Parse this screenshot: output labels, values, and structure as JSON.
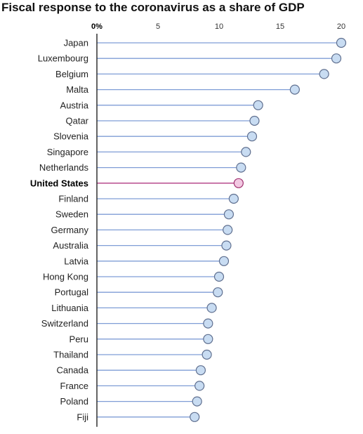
{
  "chart_data": {
    "type": "lollipop",
    "title": "Fiscal response to the coronavirus as a share of GDP",
    "xlabel": "",
    "ylabel": "",
    "xlim": [
      0,
      20
    ],
    "x_ticks": [
      "0%",
      "5",
      "10",
      "15",
      "20"
    ],
    "x_tick_values": [
      0,
      5,
      10,
      15,
      20
    ],
    "grid": false,
    "highlight": "United States",
    "colors": {
      "line": "#7f9dd6",
      "dot_fill": "#c8dcf2",
      "dot_stroke": "#5f6f8f",
      "highlight_line": "#b03a83",
      "highlight_fill": "#f2c8e2",
      "highlight_stroke": "#a0306e",
      "axis": "#222222"
    },
    "categories": [
      "Japan",
      "Luxembourg",
      "Belgium",
      "Malta",
      "Austria",
      "Qatar",
      "Slovenia",
      "Singapore",
      "Netherlands",
      "United States",
      "Finland",
      "Sweden",
      "Germany",
      "Australia",
      "Latvia",
      "Hong Kong",
      "Portugal",
      "Lithuania",
      "Switzerland",
      "Peru",
      "Thailand",
      "Canada",
      "France",
      "Poland",
      "Fiji"
    ],
    "values": [
      20.0,
      19.6,
      18.6,
      16.2,
      13.2,
      12.9,
      12.7,
      12.2,
      11.8,
      11.6,
      11.2,
      10.8,
      10.7,
      10.6,
      10.4,
      10.0,
      9.9,
      9.4,
      9.1,
      9.1,
      9.0,
      8.5,
      8.4,
      8.2,
      8.0
    ]
  }
}
